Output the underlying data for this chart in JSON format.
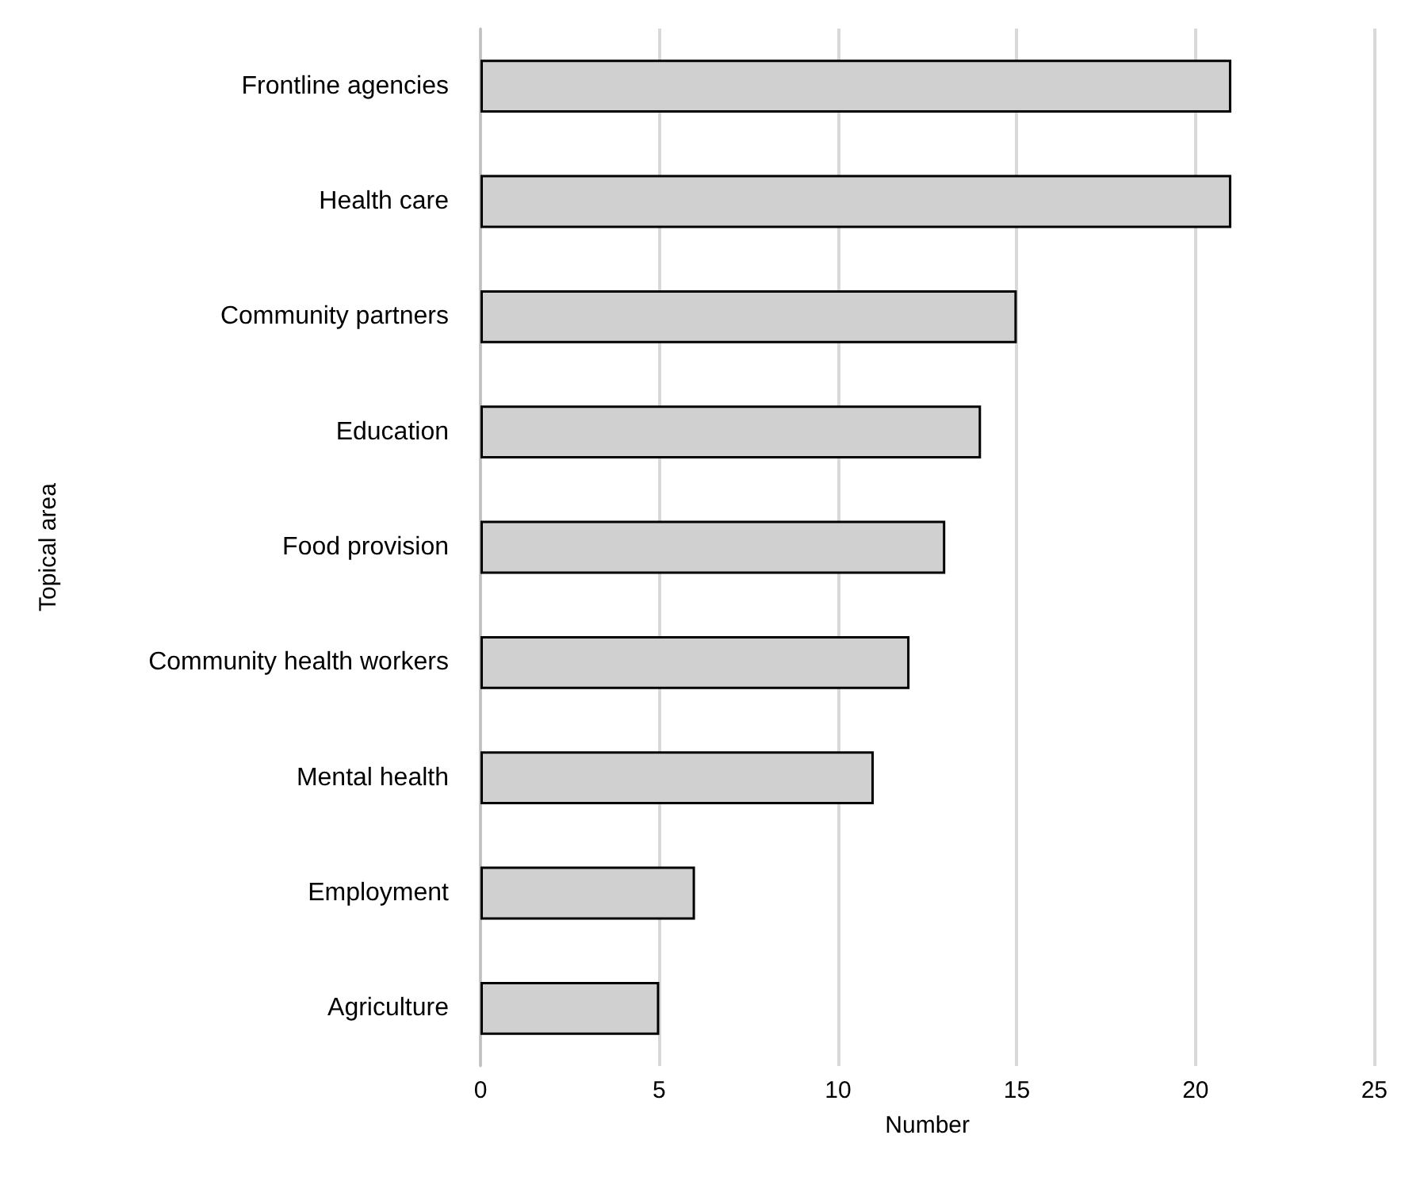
{
  "chart_data": {
    "type": "bar",
    "orientation": "horizontal",
    "xlabel": "Number",
    "ylabel": "Topical area",
    "categories": [
      "Frontline agencies",
      "Health care",
      "Community partners",
      "Education",
      "Food provision",
      "Community health workers",
      "Mental health",
      "Employment",
      "Agriculture"
    ],
    "values": [
      21,
      21,
      15,
      14,
      13,
      12,
      11,
      6,
      5
    ],
    "color": "#d0d0d0",
    "xlim": [
      0,
      25
    ],
    "xticks": [
      0,
      5,
      10,
      15,
      20,
      25
    ],
    "grid": "x"
  }
}
